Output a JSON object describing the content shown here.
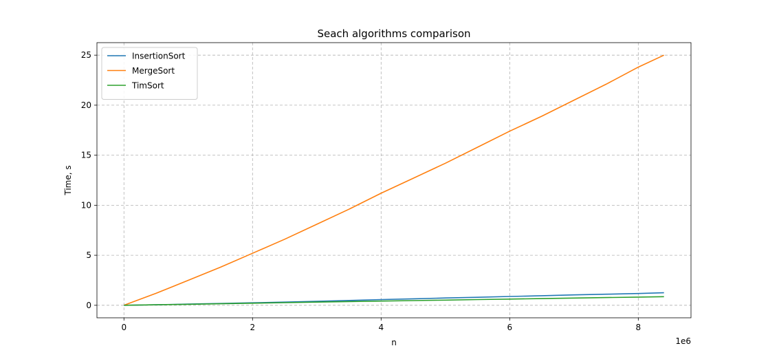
{
  "chart_data": {
    "type": "line",
    "title": "Seach algorithms comparison",
    "xlabel": "n",
    "ylabel": "Time, s",
    "x_offset_label": "1e6",
    "xlim": [
      -0.42,
      8.82
    ],
    "ylim": [
      -1.25,
      26.25
    ],
    "xticks": [
      0,
      2,
      4,
      6,
      8
    ],
    "xtick_labels": [
      "0",
      "2",
      "4",
      "6",
      "8"
    ],
    "yticks": [
      0,
      5,
      10,
      15,
      20,
      25
    ],
    "ytick_labels": [
      "0",
      "5",
      "10",
      "15",
      "20",
      "25"
    ],
    "grid": true,
    "legend_position": "top-left",
    "x": [
      0,
      0.5,
      1,
      1.5,
      2,
      2.5,
      3,
      3.5,
      4,
      4.5,
      5,
      5.5,
      6,
      6.5,
      7,
      7.5,
      8,
      8.4
    ],
    "series": [
      {
        "name": "InsertionSort",
        "color": "#1f77b4",
        "values": [
          0,
          0.05,
          0.12,
          0.18,
          0.25,
          0.32,
          0.4,
          0.48,
          0.57,
          0.65,
          0.73,
          0.8,
          0.88,
          0.96,
          1.04,
          1.11,
          1.18,
          1.25
        ]
      },
      {
        "name": "MergeSort",
        "color": "#ff7f0e",
        "values": [
          0,
          1.2,
          2.5,
          3.8,
          5.2,
          6.6,
          8.1,
          9.6,
          11.2,
          12.7,
          14.2,
          15.8,
          17.4,
          18.9,
          20.5,
          22.1,
          23.8,
          25
        ]
      },
      {
        "name": "TimSort",
        "color": "#2ca02c",
        "values": [
          0,
          0.05,
          0.1,
          0.15,
          0.21,
          0.26,
          0.32,
          0.37,
          0.42,
          0.47,
          0.52,
          0.57,
          0.62,
          0.67,
          0.72,
          0.77,
          0.82,
          0.86
        ]
      }
    ]
  }
}
